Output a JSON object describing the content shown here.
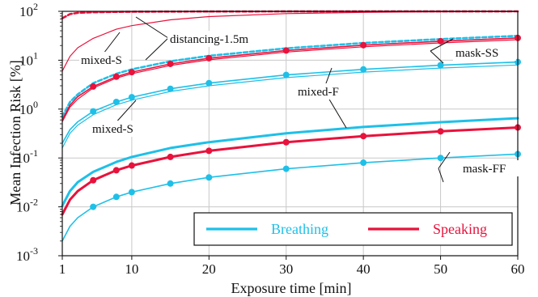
{
  "chart_data": {
    "type": "line",
    "xlabel": "Exposure time [min]",
    "ylabel": "Mean Infection Risk [%]",
    "xlim": [
      1,
      60
    ],
    "ylim": [
      0.001,
      100
    ],
    "yscale": "log",
    "grid": true,
    "legend_position": "bottom-right",
    "x_ticks": [
      "1",
      "10",
      "20",
      "30",
      "40",
      "50",
      "60"
    ],
    "x_tick_values": [
      1,
      10,
      20,
      30,
      40,
      50,
      60
    ],
    "y_tick_values": [
      0.001,
      0.01,
      0.1,
      1,
      10,
      100
    ],
    "y_ticks": [
      {
        "base": "10",
        "exp": "-3"
      },
      {
        "base": "10",
        "exp": "-2"
      },
      {
        "base": "10",
        "exp": "-1"
      },
      {
        "base": "10",
        "exp": "0"
      },
      {
        "base": "10",
        "exp": "1"
      },
      {
        "base": "10",
        "exp": "2"
      }
    ],
    "legend": [
      {
        "label": "Breathing",
        "color": "#1ec0e8"
      },
      {
        "label": "Speaking",
        "color": "#e8123c"
      }
    ],
    "colors": {
      "breathing": "#1ec0e8",
      "speaking": "#e8123c"
    },
    "series": [
      {
        "group": "breathing",
        "style": "thin",
        "x": [
          1,
          2,
          3,
          5,
          8,
          10,
          15,
          20,
          30,
          40,
          50,
          60
        ],
        "values": [
          0.16,
          0.32,
          0.47,
          0.77,
          1.23,
          1.52,
          2.3,
          3.0,
          4.4,
          5.7,
          6.9,
          8.0
        ]
      },
      {
        "group": "breathing",
        "style": "dotted-markers",
        "x": [
          1,
          2,
          3,
          5,
          8,
          10,
          15,
          20,
          30,
          40,
          50,
          60
        ],
        "values": [
          0.2,
          0.38,
          0.55,
          0.9,
          1.4,
          1.75,
          2.6,
          3.4,
          5.0,
          6.5,
          7.9,
          9.2
        ]
      },
      {
        "group": "breathing",
        "style": "dashed",
        "x": [
          1,
          2,
          3,
          5,
          8,
          10,
          15,
          20,
          30,
          40,
          50,
          60
        ],
        "values": [
          0.7,
          1.4,
          2.0,
          3.4,
          5.3,
          6.5,
          9.5,
          12.3,
          17.5,
          22.5,
          27.0,
          31.5
        ]
      },
      {
        "group": "breathing",
        "style": "thick",
        "x": [
          1,
          2,
          3,
          5,
          8,
          10,
          15,
          20,
          30,
          40,
          50,
          60
        ],
        "values": [
          0.0105,
          0.021,
          0.032,
          0.052,
          0.083,
          0.105,
          0.16,
          0.21,
          0.32,
          0.43,
          0.54,
          0.65
        ]
      },
      {
        "group": "breathing",
        "style": "dotted-markers",
        "x": [
          1,
          2,
          3,
          5,
          8,
          10,
          15,
          20,
          30,
          40,
          50,
          60
        ],
        "values": [
          0.002,
          0.004,
          0.006,
          0.01,
          0.016,
          0.02,
          0.03,
          0.04,
          0.06,
          0.08,
          0.1,
          0.12
        ]
      },
      {
        "group": "speaking",
        "style": "thin",
        "x": [
          1,
          2,
          3,
          5,
          8,
          10,
          15,
          20,
          30,
          40,
          50,
          60
        ],
        "values": [
          0.55,
          1.1,
          1.6,
          2.7,
          4.3,
          5.3,
          7.8,
          10.2,
          14.7,
          18.8,
          22.6,
          26.2
        ]
      },
      {
        "group": "speaking",
        "style": "dotted-markers",
        "x": [
          1,
          2,
          3,
          5,
          8,
          10,
          15,
          20,
          30,
          40,
          50,
          60
        ],
        "values": [
          0.6,
          1.2,
          1.8,
          2.9,
          4.6,
          5.7,
          8.4,
          11.0,
          15.8,
          20.3,
          24.5,
          28.5
        ]
      },
      {
        "group": "speaking",
        "style": "dashed",
        "x": [
          1,
          2,
          3,
          5,
          8,
          10,
          15,
          20,
          30,
          40,
          50,
          60
        ],
        "values": [
          72,
          88,
          93,
          96,
          97.5,
          98,
          98.8,
          99.2,
          99.5,
          99.7,
          99.8,
          99.9
        ]
      },
      {
        "group": "speaking",
        "style": "thin",
        "x": [
          1,
          2,
          3,
          5,
          8,
          10,
          15,
          20,
          30,
          40,
          50,
          60
        ],
        "values": [
          6,
          12,
          18,
          28,
          43,
          51,
          67,
          78,
          90,
          95,
          98,
          99
        ]
      },
      {
        "group": "speaking",
        "style": "thick-markers",
        "x": [
          1,
          2,
          3,
          5,
          8,
          10,
          15,
          20,
          30,
          40,
          50,
          60
        ],
        "values": [
          0.007,
          0.014,
          0.021,
          0.035,
          0.056,
          0.07,
          0.105,
          0.14,
          0.21,
          0.28,
          0.35,
          0.42
        ]
      }
    ],
    "annotations": [
      {
        "text": "distancing-1.5m"
      },
      {
        "text": "mixed-S"
      },
      {
        "text": "mask-SS"
      },
      {
        "text": "mixed-F"
      },
      {
        "text": "mixed-S"
      },
      {
        "text": "mask-FF"
      }
    ]
  }
}
